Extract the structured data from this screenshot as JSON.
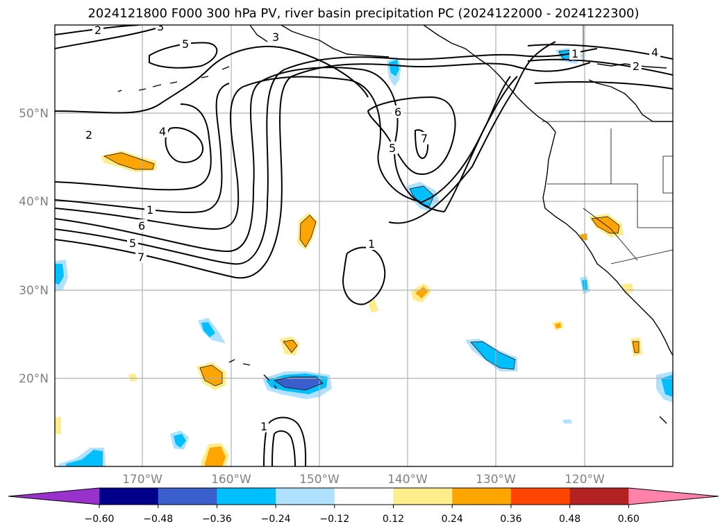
{
  "title": "2024121800 F000 300 hPa PV, river basin precipitation PC (2024122000 - 2024122300)",
  "lat_labels": [
    "50°N",
    "40°N",
    "30°N",
    "20°N"
  ],
  "lon_labels": [
    "170°W",
    "160°W",
    "150°W",
    "140°W",
    "130°W",
    "120°W"
  ],
  "contour_labels": [
    "2",
    "3",
    "5",
    "3",
    "6",
    "7",
    "5",
    "4",
    "2",
    "1",
    "6",
    "5",
    "7",
    "1",
    "1",
    "1",
    "4",
    "2"
  ],
  "colorbar": {
    "ticks": [
      "−0.60",
      "−0.48",
      "−0.36",
      "−0.24",
      "−0.12",
      "0.12",
      "0.24",
      "0.36",
      "0.48",
      "0.60"
    ],
    "colors": [
      "#9932cc",
      "#00008b",
      "#3a5fcd",
      "#00bfff",
      "#b0e2ff",
      "#ffffff",
      "#ffec8b",
      "#ffa500",
      "#ff4500",
      "#b22222",
      "#ff82ab"
    ]
  }
}
